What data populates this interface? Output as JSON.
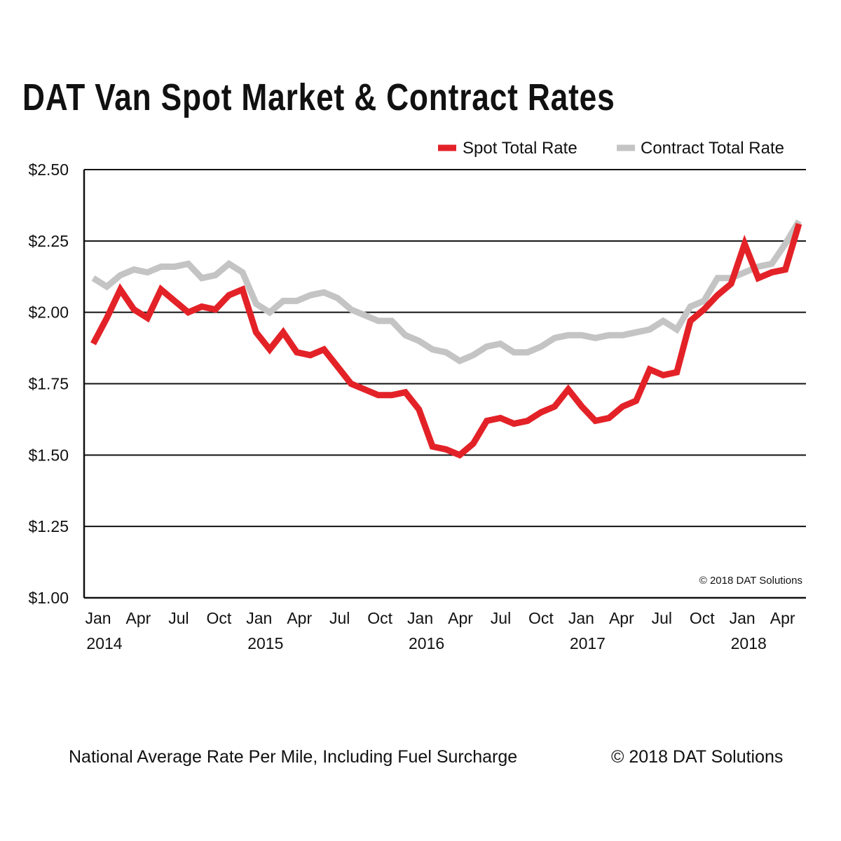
{
  "chart_data": {
    "type": "line",
    "title": "DAT Van Spot Market & Contract Rates",
    "subtitle": "",
    "xlabel": "",
    "ylabel": "",
    "ylim": [
      1.0,
      2.5
    ],
    "yticks": [
      "$1.00",
      "$1.25",
      "$1.50",
      "$1.75",
      "$2.00",
      "$2.25",
      "$2.50"
    ],
    "ytick_values": [
      1.0,
      1.25,
      1.5,
      1.75,
      2.0,
      2.25,
      2.5
    ],
    "x_start": "2014-01",
    "x_end": "2018-05",
    "xtick_months": [
      "Jan",
      "Apr",
      "Jul",
      "Oct",
      "Jan",
      "Apr",
      "Jul",
      "Oct",
      "Jan",
      "Apr",
      "Jul",
      "Oct",
      "Jan",
      "Apr",
      "Jul",
      "Oct",
      "Jan",
      "Apr"
    ],
    "xtick_years": [
      "2014",
      "2015",
      "2016",
      "2017",
      "2018"
    ],
    "grid": "horizontal",
    "legend_placement": "top-right",
    "series": [
      {
        "name": "Spot Total Rate",
        "color": "#e32228",
        "values": [
          1.89,
          1.98,
          2.08,
          2.01,
          1.98,
          2.08,
          2.04,
          2.0,
          2.02,
          2.01,
          2.06,
          2.08,
          1.93,
          1.87,
          1.93,
          1.86,
          1.85,
          1.87,
          1.81,
          1.75,
          1.73,
          1.71,
          1.71,
          1.72,
          1.66,
          1.53,
          1.52,
          1.5,
          1.54,
          1.62,
          1.63,
          1.61,
          1.62,
          1.65,
          1.67,
          1.73,
          1.67,
          1.62,
          1.63,
          1.67,
          1.69,
          1.8,
          1.78,
          1.79,
          1.97,
          2.01,
          2.06,
          2.1,
          2.24,
          2.12,
          2.14,
          2.15,
          2.31
        ]
      },
      {
        "name": "Contract Total Rate",
        "color": "#c4c4c4",
        "values": [
          2.12,
          2.09,
          2.13,
          2.15,
          2.14,
          2.16,
          2.16,
          2.17,
          2.12,
          2.13,
          2.17,
          2.14,
          2.03,
          2.0,
          2.04,
          2.04,
          2.06,
          2.07,
          2.05,
          2.01,
          1.99,
          1.97,
          1.97,
          1.92,
          1.9,
          1.87,
          1.86,
          1.83,
          1.85,
          1.88,
          1.89,
          1.86,
          1.86,
          1.88,
          1.91,
          1.92,
          1.92,
          1.91,
          1.92,
          1.92,
          1.93,
          1.94,
          1.97,
          1.94,
          2.02,
          2.04,
          2.12,
          2.12,
          2.14,
          2.16,
          2.17,
          2.24,
          2.32
        ]
      }
    ],
    "annotation": "© 2018 DAT Solutions"
  },
  "footer": {
    "note": "National Average Rate Per Mile, Including Fuel Surcharge",
    "copyright": "© 2018 DAT Solutions"
  }
}
